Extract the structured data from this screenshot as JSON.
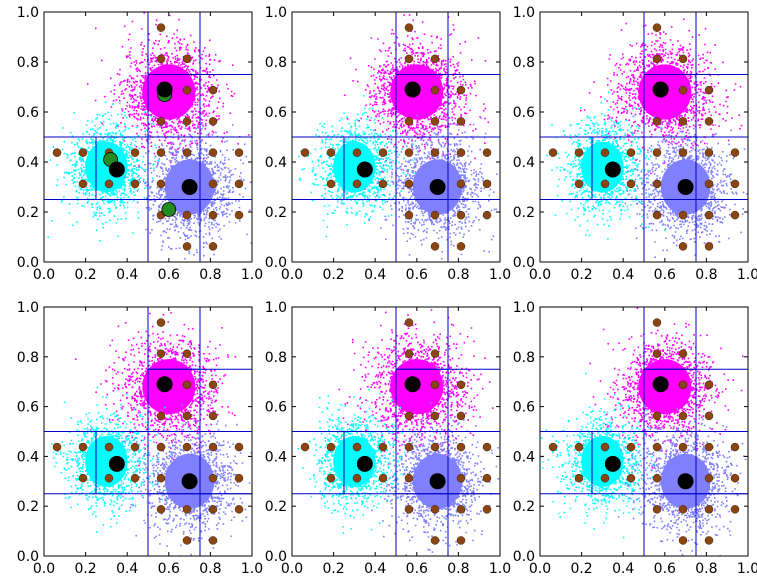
{
  "figure": {
    "rows": 2,
    "cols": 3
  },
  "colors": {
    "cluster_magenta": "#ff00ff",
    "cluster_cyan": "#00ffff",
    "cluster_periwinkle": "#8080ff",
    "grid_line": "#0000c8",
    "sample_point": "#8b4513",
    "centroid": "#000000",
    "initial_centroid": "#228b22",
    "axes": "#000000"
  },
  "chart_data": [
    {
      "type": "scatter",
      "panel": 1,
      "grid": "coarse",
      "xlim": [
        0.0,
        1.0
      ],
      "ylim": [
        0.0,
        1.0
      ],
      "x_ticks": [
        "0.0",
        "0.2",
        "0.4",
        "0.6",
        "0.8",
        "1.0"
      ],
      "y_ticks": [
        "0.0",
        "0.2",
        "0.4",
        "0.6",
        "0.8",
        "1.0"
      ],
      "centroids": [
        [
          0.58,
          0.69
        ],
        [
          0.35,
          0.37
        ],
        [
          0.7,
          0.3
        ]
      ],
      "extra_centroids": [
        [
          0.58,
          0.67
        ],
        [
          0.32,
          0.41
        ],
        [
          0.6,
          0.21
        ]
      ]
    },
    {
      "type": "scatter",
      "panel": 2,
      "grid": "medium",
      "xlim": [
        0.0,
        1.0
      ],
      "ylim": [
        0.0,
        1.0
      ],
      "x_ticks": [
        "0.0",
        "0.2",
        "0.4",
        "0.6",
        "0.8",
        "1.0"
      ],
      "y_ticks": [
        "0.0",
        "0.2",
        "0.4",
        "0.6",
        "0.8",
        "1.0"
      ],
      "centroids": [
        [
          0.58,
          0.69
        ],
        [
          0.35,
          0.37
        ],
        [
          0.7,
          0.3
        ]
      ]
    },
    {
      "type": "scatter",
      "panel": 3,
      "grid": "fine",
      "xlim": [
        0.0,
        1.0
      ],
      "ylim": [
        0.0,
        1.0
      ],
      "x_ticks": [
        "0.0",
        "0.2",
        "0.4",
        "0.6",
        "0.8",
        "1.0"
      ],
      "y_ticks": [
        "0.0",
        "0.2",
        "0.4",
        "0.6",
        "0.8",
        "1.0"
      ],
      "centroids": [
        [
          0.58,
          0.69
        ],
        [
          0.35,
          0.37
        ],
        [
          0.7,
          0.3
        ]
      ]
    },
    {
      "type": "scatter",
      "panel": 4,
      "grid": "finer",
      "xlim": [
        0.0,
        1.0
      ],
      "ylim": [
        0.0,
        1.0
      ],
      "x_ticks": [
        "0.0",
        "0.2",
        "0.4",
        "0.6",
        "0.8",
        "1.0"
      ],
      "y_ticks": [
        "0.0",
        "0.2",
        "0.4",
        "0.6",
        "0.8",
        "1.0"
      ],
      "centroids": [
        [
          0.58,
          0.69
        ],
        [
          0.35,
          0.37
        ],
        [
          0.7,
          0.3
        ]
      ]
    },
    {
      "type": "scatter",
      "panel": 5,
      "grid": "very-fine",
      "xlim": [
        0.0,
        1.0
      ],
      "ylim": [
        0.0,
        1.0
      ],
      "x_ticks": [
        "0.0",
        "0.2",
        "0.4",
        "0.6",
        "0.8",
        "1.0"
      ],
      "y_ticks": [
        "0.0",
        "0.2",
        "0.4",
        "0.6",
        "0.8",
        "1.0"
      ],
      "centroids": [
        [
          0.58,
          0.69
        ],
        [
          0.35,
          0.37
        ],
        [
          0.7,
          0.3
        ]
      ]
    },
    {
      "type": "scatter",
      "panel": 6,
      "grid": "finest",
      "xlim": [
        0.0,
        1.0
      ],
      "ylim": [
        0.0,
        1.0
      ],
      "x_ticks": [
        "0.0",
        "0.2",
        "0.4",
        "0.6",
        "0.8",
        "1.0"
      ],
      "y_ticks": [
        "0.0",
        "0.2",
        "0.4",
        "0.6",
        "0.8",
        "1.0"
      ],
      "centroids": [
        [
          0.58,
          0.69
        ],
        [
          0.35,
          0.37
        ],
        [
          0.7,
          0.3
        ]
      ]
    }
  ]
}
